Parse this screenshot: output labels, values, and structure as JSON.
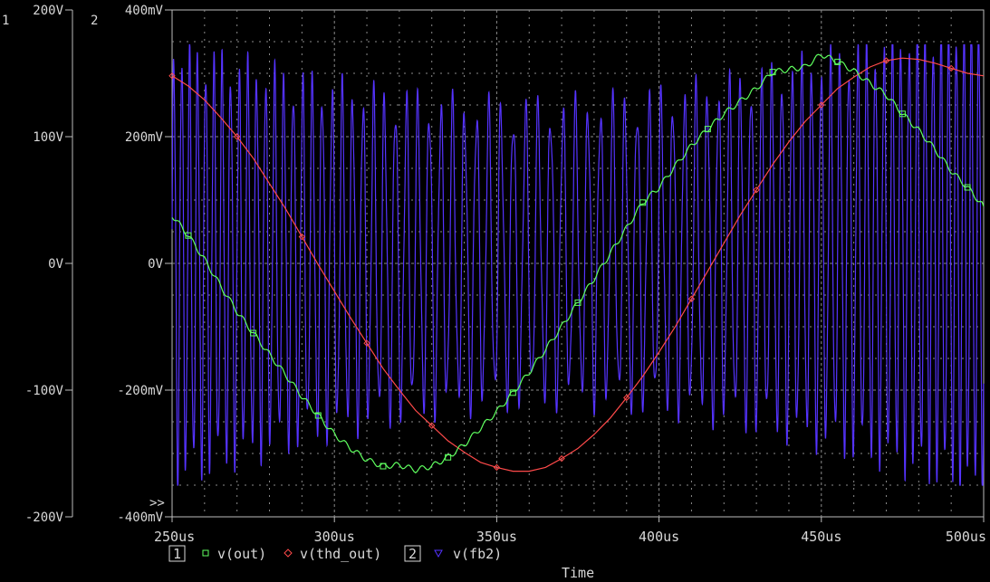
{
  "chart_data": {
    "type": "line",
    "xlabel": "Time",
    "x_ticks": [
      "250us",
      "300us",
      "350us",
      "400us",
      "450us",
      "500us"
    ],
    "xlim": [
      250,
      500
    ],
    "x_unit": "us",
    "axis1": {
      "label": "1",
      "ticks": [
        "200V",
        "100V",
        "0V",
        "-100V",
        "-200V"
      ],
      "ylim": [
        -200,
        200
      ],
      "unit": "V"
    },
    "axis2": {
      "label": "2",
      "ticks": [
        "400mV",
        "200mV",
        "0V",
        "-200mV",
        "-400mV"
      ],
      "ylim": [
        -400,
        400
      ],
      "unit": "mV"
    },
    "grid": true,
    "cursor_marker": ">>",
    "legend": [
      {
        "axis_box": "1",
        "entries": [
          {
            "name": "v(out)",
            "marker": "square",
            "color": "#5fff5f"
          },
          {
            "name": "v(thd_out)",
            "marker": "diamond",
            "color": "#ff4a4a"
          }
        ]
      },
      {
        "axis_box": "2",
        "entries": [
          {
            "name": "v(fb2)",
            "marker": "triangle",
            "color": "#5533ff"
          }
        ]
      }
    ],
    "series": [
      {
        "name": "v(out)",
        "axis": "1",
        "color": "#5fff5f",
        "x": [
          250,
          255,
          260,
          265,
          270,
          275,
          280,
          285,
          290,
          295,
          300,
          305,
          310,
          315,
          320,
          325,
          330,
          335,
          340,
          345,
          350,
          355,
          360,
          365,
          370,
          375,
          380,
          385,
          390,
          395,
          400,
          405,
          410,
          415,
          420,
          425,
          430,
          435,
          440,
          445,
          450,
          455,
          460,
          465,
          470,
          475,
          480,
          485,
          490,
          495,
          500
        ],
        "y": [
          38,
          22,
          3,
          -18,
          -38,
          -55,
          -72,
          -88,
          -105,
          -120,
          -135,
          -146,
          -155,
          -160,
          -159,
          -163,
          -160,
          -153,
          -143,
          -130,
          -117,
          -102,
          -86,
          -68,
          -50,
          -31,
          -12,
          8,
          28,
          48,
          60,
          77,
          93,
          106,
          118,
          128,
          138,
          151,
          153,
          155,
          165,
          159,
          152,
          142,
          133,
          118,
          105,
          90,
          73,
          60,
          45
        ]
      },
      {
        "name": "v(thd_out)",
        "axis": "1",
        "color": "#ff4a4a",
        "x": [
          250,
          255,
          260,
          265,
          270,
          275,
          280,
          285,
          290,
          295,
          300,
          305,
          310,
          315,
          320,
          325,
          330,
          335,
          340,
          345,
          350,
          355,
          360,
          365,
          370,
          375,
          380,
          385,
          390,
          395,
          400,
          405,
          410,
          415,
          420,
          425,
          430,
          435,
          440,
          445,
          450,
          455,
          460,
          465,
          470,
          475,
          480,
          485,
          490,
          495,
          500
        ],
        "y": [
          148,
          140,
          129,
          115,
          100,
          83,
          63,
          43,
          21,
          -1,
          -22,
          -43,
          -63,
          -83,
          -100,
          -116,
          -128,
          -140,
          -149,
          -157,
          -161,
          -164,
          -164,
          -161,
          -154,
          -146,
          -135,
          -122,
          -106,
          -89,
          -70,
          -50,
          -28,
          -6,
          16,
          38,
          58,
          78,
          96,
          112,
          125,
          138,
          147,
          155,
          160,
          162,
          161,
          158,
          154,
          150,
          148
        ]
      },
      {
        "name": "v(fb2)",
        "axis": "2",
        "color": "#5533ff",
        "x": [
          250,
          500
        ],
        "y_description": "high-frequency oscillation, amplitude roughly -350mV to +340mV",
        "y": [
          -180,
          150
        ]
      }
    ]
  }
}
